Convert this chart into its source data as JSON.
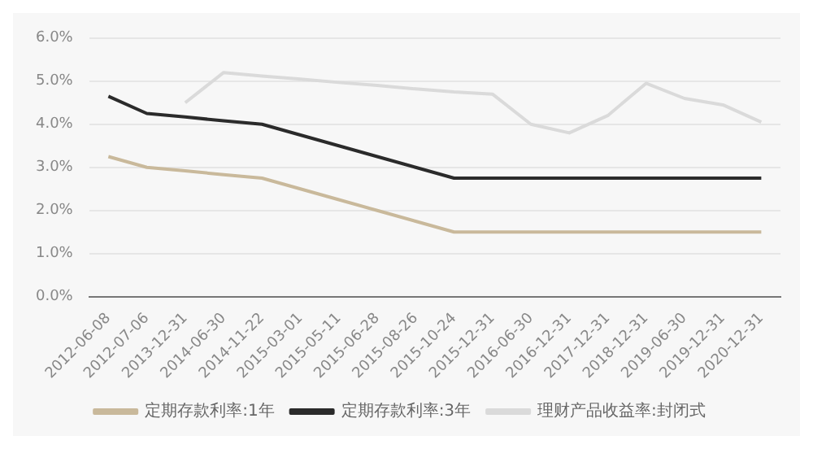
{
  "chart_data": {
    "type": "line",
    "categories": [
      "2012-06-08",
      "2012-07-06",
      "2013-12-31",
      "2014-06-30",
      "2014-11-22",
      "2015-03-01",
      "2015-05-11",
      "2015-06-28",
      "2015-08-26",
      "2015-10-24",
      "2015-12-31",
      "2016-06-30",
      "2016-12-31",
      "2017-12-31",
      "2018-12-31",
      "2019-06-30",
      "2019-12-31",
      "2020-12-31"
    ],
    "series": [
      {
        "name": "定期存款利率:1年",
        "color": "#c9b99b",
        "values": [
          3.25,
          3.0,
          2.92,
          2.83,
          2.75,
          2.5,
          2.25,
          2.0,
          1.75,
          1.5,
          1.5,
          1.5,
          1.5,
          1.5,
          1.5,
          1.5,
          1.5,
          1.5
        ]
      },
      {
        "name": "定期存款利率:3年",
        "color": "#2b2b2b",
        "values": [
          4.65,
          4.25,
          4.17,
          4.08,
          4.0,
          3.75,
          3.5,
          3.25,
          3.0,
          2.75,
          2.75,
          2.75,
          2.75,
          2.75,
          2.75,
          2.75,
          2.75,
          2.75
        ]
      },
      {
        "name": "理财产品收益率:封闭式",
        "color": "#dadada",
        "values": [
          null,
          null,
          4.5,
          5.2,
          5.12,
          5.05,
          4.97,
          4.9,
          4.82,
          4.75,
          4.7,
          4.0,
          3.8,
          4.2,
          4.95,
          4.6,
          4.45,
          4.05
        ]
      }
    ],
    "ylim": [
      0,
      6
    ],
    "yticks": [
      {
        "value": 0,
        "label": "0.0%"
      },
      {
        "value": 1,
        "label": "1.0%"
      },
      {
        "value": 2,
        "label": "2.0%"
      },
      {
        "value": 3,
        "label": "3.0%"
      },
      {
        "value": 4,
        "label": "4.0%"
      },
      {
        "value": 5,
        "label": "5.0%"
      },
      {
        "value": 6,
        "label": "6.0%"
      }
    ],
    "grid": "y",
    "legend": "bottom",
    "marker": "none",
    "line_style": "solid"
  }
}
